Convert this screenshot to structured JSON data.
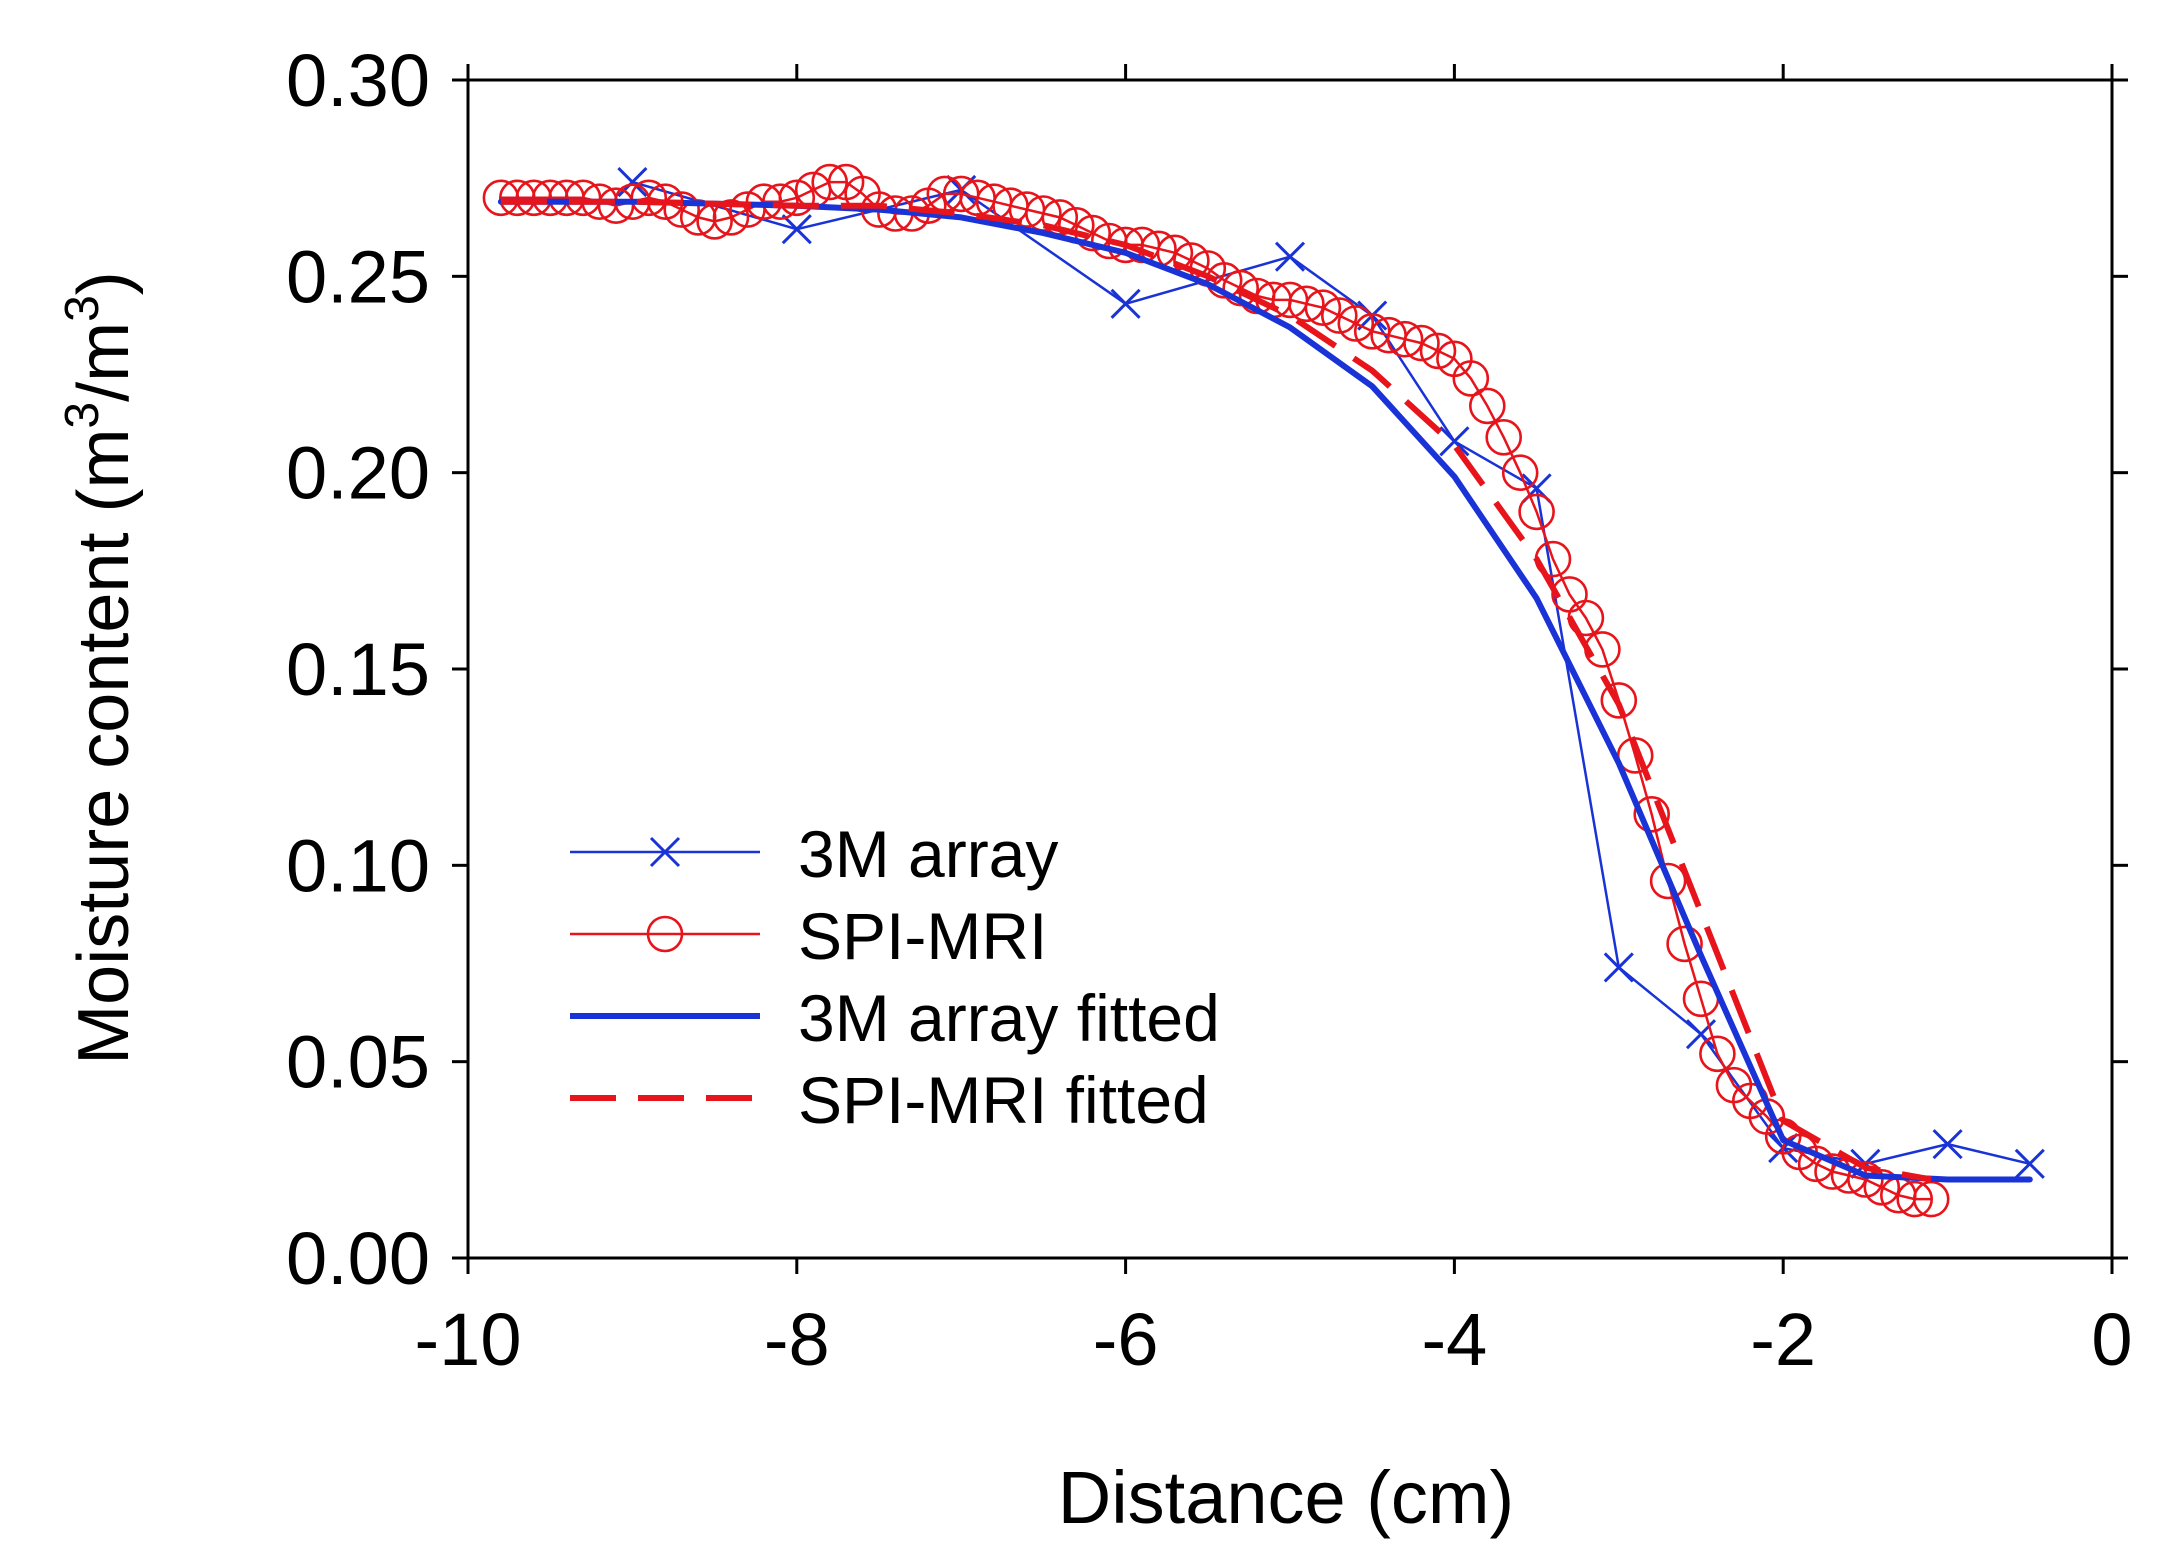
{
  "chart_data": {
    "type": "line",
    "title": "",
    "xlabel": "Distance (cm)",
    "ylabel_main": "Moisture content (m",
    "ylabel_sup1": "3",
    "ylabel_mid": "/m",
    "ylabel_sup2": "3",
    "ylabel_end": ")",
    "xlim": [
      -10,
      0
    ],
    "ylim": [
      0,
      0.3
    ],
    "xticks": [
      {
        "value": -10,
        "label": "-10"
      },
      {
        "value": -8,
        "label": "-8"
      },
      {
        "value": -6,
        "label": "-6"
      },
      {
        "value": -4,
        "label": "-4"
      },
      {
        "value": -2,
        "label": "-2"
      },
      {
        "value": 0,
        "label": "0"
      }
    ],
    "yticks": [
      {
        "value": 0.0,
        "label": "0.00"
      },
      {
        "value": 0.05,
        "label": "0.05"
      },
      {
        "value": 0.1,
        "label": "0.10"
      },
      {
        "value": 0.15,
        "label": "0.15"
      },
      {
        "value": 0.2,
        "label": "0.20"
      },
      {
        "value": 0.25,
        "label": "0.25"
      },
      {
        "value": 0.3,
        "label": "0.30"
      }
    ],
    "legend_position": "lower-left",
    "series": [
      {
        "name": "3M array",
        "style": "thin-line-x-marker",
        "color": "#1a33d6",
        "x": [
          -9.0,
          -8.0,
          -7.0,
          -6.0,
          -5.0,
          -4.5,
          -4.0,
          -3.5,
          -3.0,
          -2.5,
          -2.0,
          -1.5,
          -1.0,
          -0.5
        ],
        "y": [
          0.274,
          0.262,
          0.272,
          0.243,
          0.255,
          0.24,
          0.208,
          0.196,
          0.074,
          0.057,
          0.028,
          0.024,
          0.029,
          0.024
        ]
      },
      {
        "name": "SPI-MRI",
        "style": "thin-line-circle-marker",
        "color": "#e8141b",
        "x": [
          -9.8,
          -9.7,
          -9.6,
          -9.5,
          -9.4,
          -9.3,
          -9.2,
          -9.1,
          -9.0,
          -8.9,
          -8.8,
          -8.7,
          -8.6,
          -8.5,
          -8.4,
          -8.3,
          -8.2,
          -8.1,
          -8.0,
          -7.9,
          -7.8,
          -7.7,
          -7.6,
          -7.5,
          -7.4,
          -7.3,
          -7.2,
          -7.1,
          -7.0,
          -6.9,
          -6.8,
          -6.7,
          -6.6,
          -6.5,
          -6.4,
          -6.3,
          -6.2,
          -6.1,
          -6.0,
          -5.9,
          -5.8,
          -5.7,
          -5.6,
          -5.5,
          -5.4,
          -5.3,
          -5.2,
          -5.1,
          -5.0,
          -4.9,
          -4.8,
          -4.7,
          -4.6,
          -4.5,
          -4.4,
          -4.3,
          -4.2,
          -4.1,
          -4.0,
          -3.9,
          -3.8,
          -3.7,
          -3.6,
          -3.5,
          -3.4,
          -3.3,
          -3.2,
          -3.1,
          -3.0,
          -2.9,
          -2.8,
          -2.7,
          -2.6,
          -2.5,
          -2.4,
          -2.3,
          -2.2,
          -2.1,
          -2.0,
          -1.9,
          -1.8,
          -1.7,
          -1.6,
          -1.5,
          -1.4,
          -1.3,
          -1.2,
          -1.1
        ],
        "y": [
          0.27,
          0.27,
          0.27,
          0.27,
          0.27,
          0.27,
          0.269,
          0.268,
          0.269,
          0.27,
          0.269,
          0.267,
          0.265,
          0.264,
          0.265,
          0.267,
          0.269,
          0.269,
          0.27,
          0.272,
          0.274,
          0.274,
          0.271,
          0.267,
          0.266,
          0.266,
          0.268,
          0.271,
          0.271,
          0.27,
          0.269,
          0.268,
          0.267,
          0.266,
          0.265,
          0.263,
          0.261,
          0.259,
          0.258,
          0.258,
          0.257,
          0.256,
          0.254,
          0.252,
          0.249,
          0.247,
          0.245,
          0.244,
          0.244,
          0.243,
          0.242,
          0.24,
          0.238,
          0.236,
          0.235,
          0.234,
          0.233,
          0.231,
          0.229,
          0.224,
          0.217,
          0.209,
          0.2,
          0.19,
          0.178,
          0.169,
          0.163,
          0.155,
          0.142,
          0.128,
          0.113,
          0.096,
          0.08,
          0.066,
          0.052,
          0.044,
          0.04,
          0.036,
          0.031,
          0.027,
          0.024,
          0.022,
          0.021,
          0.02,
          0.018,
          0.016,
          0.015,
          0.015
        ]
      },
      {
        "name": "3M array fitted",
        "style": "thick-solid-line",
        "color": "#1a33d6",
        "x": [
          -9.8,
          -9.0,
          -8.0,
          -7.5,
          -7.0,
          -6.5,
          -6.0,
          -5.5,
          -5.0,
          -4.5,
          -4.0,
          -3.5,
          -3.0,
          -2.5,
          -2.0,
          -1.5,
          -1.0,
          -0.5
        ],
        "y": [
          0.269,
          0.269,
          0.268,
          0.267,
          0.265,
          0.261,
          0.256,
          0.248,
          0.237,
          0.222,
          0.199,
          0.168,
          0.126,
          0.077,
          0.03,
          0.021,
          0.02,
          0.02
        ]
      },
      {
        "name": "SPI-MRI fitted",
        "style": "thick-dashed-line",
        "color": "#e8141b",
        "x": [
          -9.8,
          -9.0,
          -8.0,
          -7.5,
          -7.0,
          -6.5,
          -6.0,
          -5.5,
          -5.0,
          -4.5,
          -4.0,
          -3.5,
          -3.0,
          -2.5,
          -2.0,
          -1.5,
          -1.1
        ],
        "y": [
          0.269,
          0.269,
          0.268,
          0.268,
          0.266,
          0.263,
          0.258,
          0.25,
          0.24,
          0.226,
          0.207,
          0.178,
          0.141,
          0.088,
          0.035,
          0.023,
          0.02
        ]
      }
    ]
  }
}
